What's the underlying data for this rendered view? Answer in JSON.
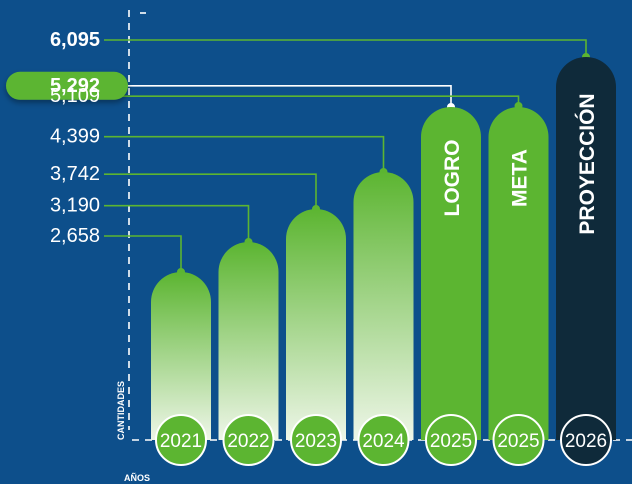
{
  "chart_data": {
    "type": "bar",
    "categories": [
      "2021",
      "2022",
      "2023",
      "2024",
      "2025",
      "2025",
      "2026"
    ],
    "values": [
      2658,
      3190,
      3742,
      4399,
      5292,
      5109,
      6095
    ],
    "value_labels": [
      "2,658",
      "3,190",
      "3,742",
      "4,399",
      "5,292",
      "5,109",
      "6,095"
    ],
    "bar_labels": [
      "",
      "",
      "",
      "",
      "LOGRO",
      "META",
      "PROYECCIÓN"
    ],
    "bar_styles": [
      "gradient",
      "gradient",
      "gradient",
      "gradient",
      "solid",
      "solid",
      "dark"
    ],
    "highlighted": [
      "5,292"
    ],
    "bold": [
      "6,095",
      "5,292"
    ],
    "ylabel": "CANTIDADES",
    "xlabel": "AÑOS",
    "grid": false,
    "colors": {
      "background": "#0d4f8b",
      "green": "#5cb531",
      "green_light": "#e9f4e0",
      "dark": "#0f2a3a",
      "white": "#ffffff"
    }
  }
}
